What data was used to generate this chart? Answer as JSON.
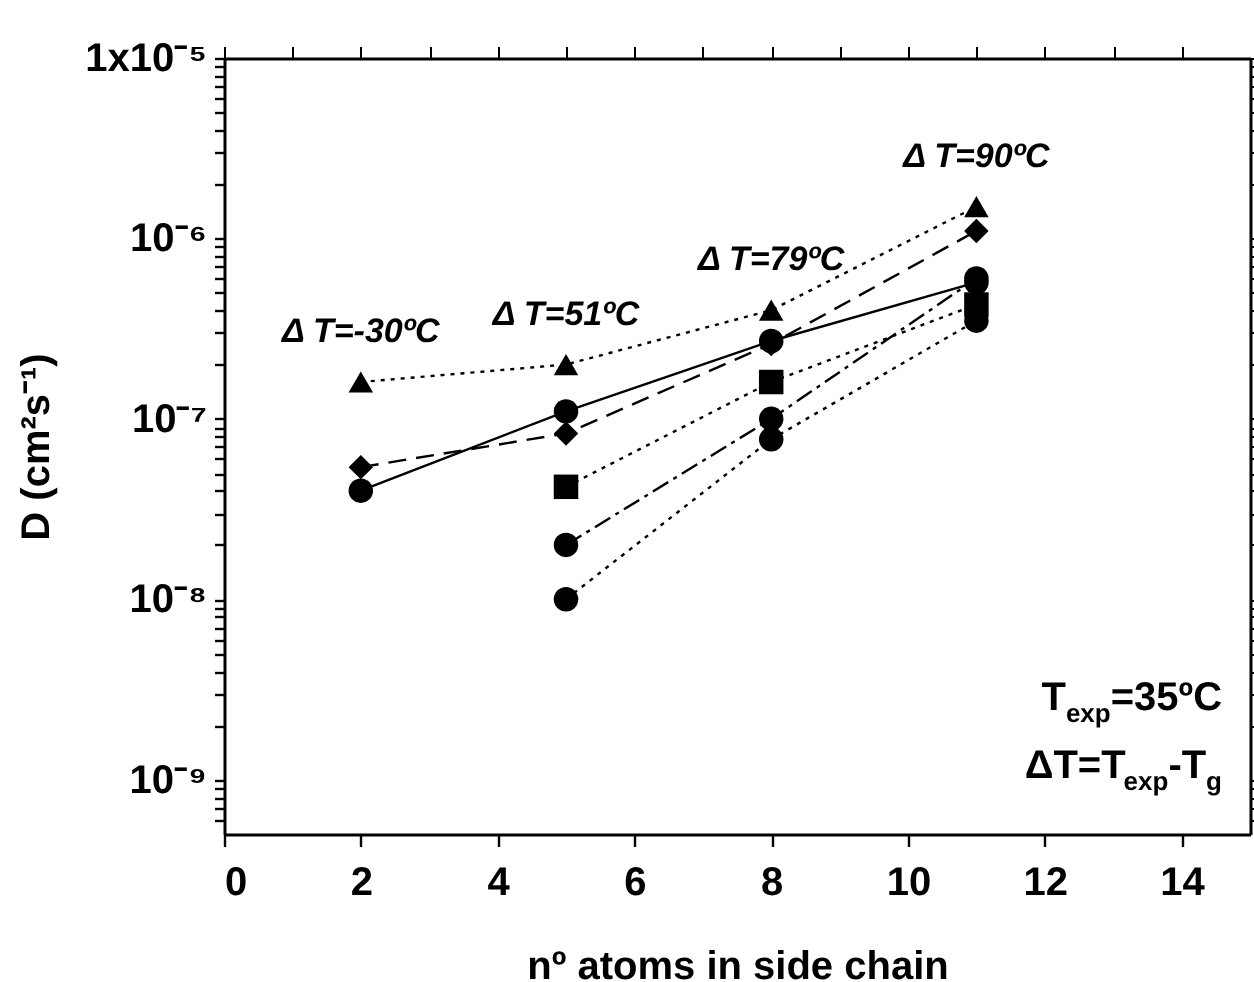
{
  "chart_data": {
    "type": "line",
    "xlabel": "nº atoms in side chain",
    "ylabel": "D (cm²s⁻¹)",
    "log": "y",
    "grid": false,
    "xlim": [
      0,
      15
    ],
    "xticks": [
      0,
      {
        "value": 1,
        "label": null
      },
      2,
      {
        "value": 3,
        "label": null
      },
      4,
      {
        "value": 5,
        "label": null
      },
      6,
      {
        "value": 7,
        "label": null
      },
      8,
      {
        "value": 9,
        "label": null
      },
      10,
      {
        "value": 11,
        "label": null
      },
      12,
      {
        "value": 13,
        "label": null
      },
      14
    ],
    "ylim": [
      5e-10,
      1e-05
    ],
    "yticks": [
      {
        "value": 6e-10,
        "label": null
      },
      {
        "value": 7e-10,
        "label": null
      },
      {
        "value": 8e-10,
        "label": null
      },
      {
        "value": 9e-10,
        "label": null
      },
      {
        "value": 1e-09,
        "label": "10⁻⁹"
      },
      {
        "value": 2e-09,
        "label": null
      },
      {
        "value": 3e-09,
        "label": null
      },
      {
        "value": 4e-09,
        "label": null
      },
      {
        "value": 5e-09,
        "label": null
      },
      {
        "value": 6e-09,
        "label": null
      },
      {
        "value": 7e-09,
        "label": null
      },
      {
        "value": 8e-09,
        "label": null
      },
      {
        "value": 9e-09,
        "label": null
      },
      {
        "value": 1e-08,
        "label": "10⁻⁸"
      },
      {
        "value": 2e-08,
        "label": null
      },
      {
        "value": 3e-08,
        "label": null
      },
      {
        "value": 4e-08,
        "label": null
      },
      {
        "value": 5e-08,
        "label": null
      },
      {
        "value": 6e-08,
        "label": null
      },
      {
        "value": 7e-08,
        "label": null
      },
      {
        "value": 8e-08,
        "label": null
      },
      {
        "value": 9e-08,
        "label": null
      },
      {
        "value": 1e-07,
        "label": "10⁻⁷"
      },
      {
        "value": 2e-07,
        "label": null
      },
      {
        "value": 3e-07,
        "label": null
      },
      {
        "value": 4e-07,
        "label": null
      },
      {
        "value": 5e-07,
        "label": null
      },
      {
        "value": 6e-07,
        "label": null
      },
      {
        "value": 7e-07,
        "label": null
      },
      {
        "value": 8e-07,
        "label": null
      },
      {
        "value": 9e-07,
        "label": null
      },
      {
        "value": 1e-06,
        "label": "10⁻⁶"
      },
      {
        "value": 2e-06,
        "label": null
      },
      {
        "value": 3e-06,
        "label": null
      },
      {
        "value": 4e-06,
        "label": null
      },
      {
        "value": 5e-06,
        "label": null
      },
      {
        "value": 6e-06,
        "label": null
      },
      {
        "value": 7e-06,
        "label": null
      },
      {
        "value": 8e-06,
        "label": null
      },
      {
        "value": 9e-06,
        "label": null
      },
      {
        "value": 1e-05,
        "label": "1x10⁻⁵"
      }
    ],
    "series": [
      {
        "color": "#000000",
        "marker": "triangle",
        "line_style": "dotted",
        "x": [
          2,
          5,
          8,
          11
        ],
        "values": [
          1.6e-07,
          2e-07,
          4e-07,
          1.5e-06
        ]
      },
      {
        "color": "#000000",
        "marker": "diamond",
        "line_style": "dashed",
        "x": [
          2,
          5,
          8,
          11
        ],
        "values": [
          5.4e-08,
          8.3e-08,
          2.6e-07,
          1.1e-06
        ]
      },
      {
        "color": "#000000",
        "marker": "circle",
        "line_style": "solid",
        "x": [
          2,
          5,
          8,
          11
        ],
        "values": [
          4e-08,
          1.1e-07,
          2.7e-07,
          5.7e-07
        ]
      },
      {
        "color": "#000000",
        "marker": "square",
        "line_style": "dotted",
        "x": [
          5,
          8,
          11
        ],
        "values": [
          4.2e-08,
          1.6e-07,
          4.3e-07
        ]
      },
      {
        "color": "#000000",
        "marker": "circle",
        "line_style": "dashdot",
        "x": [
          5,
          8,
          11
        ],
        "values": [
          2e-08,
          1e-07,
          6e-07
        ]
      },
      {
        "color": "#000000",
        "marker": "circle",
        "line_style": "dotted",
        "x": [
          5,
          8,
          11
        ],
        "values": [
          1e-08,
          7.7e-08,
          3.5e-07
        ]
      }
    ],
    "annotations": [
      {
        "text": "Δ T=-30ºC",
        "x": 2,
        "y": 1.6e-07
      },
      {
        "text": "Δ T=51ºC",
        "x": 5,
        "y": 2e-07
      },
      {
        "text": "Δ T=79ºC",
        "x": 8,
        "y": 4e-07
      },
      {
        "text": "Δ T=90ºC",
        "x": 11,
        "y": 1.5e-06
      },
      "T$_{exp}$=35ºC",
      "ΔT=T$_{exp}$-T$_{g}$"
    ]
  }
}
